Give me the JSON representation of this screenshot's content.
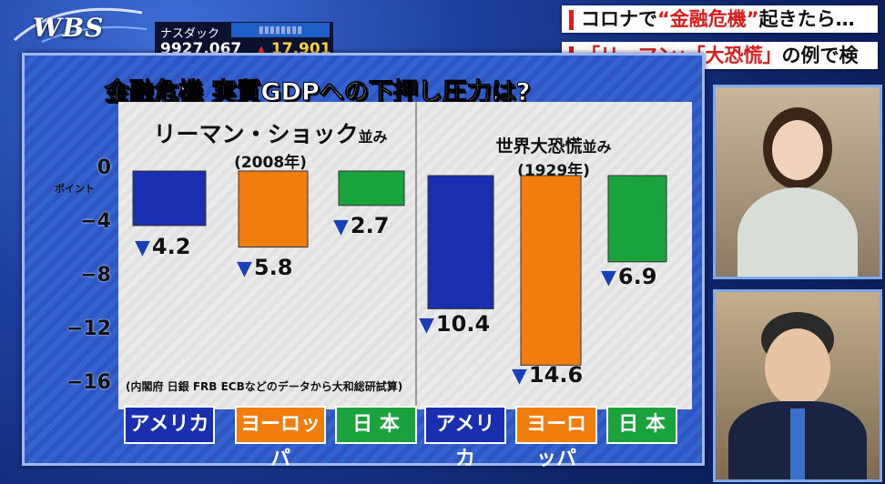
{
  "logo": "WBS",
  "ticker": {
    "name": "ナスダック",
    "value": "9927.067",
    "change": "17.901",
    "arrow": "▲"
  },
  "headline": {
    "line1_pre": "コロナで",
    "line1_red": "“金融危機”",
    "line1_post": "起きたら…",
    "line2_red": "「リーマン」「大恐慌」",
    "line2_post": "の例で検証"
  },
  "board_title": "金融危機  実質GDPへの下押し圧力は?",
  "y_unit": "ポイント",
  "note": "(内閣府 日銀 FRB ECBなどのデータから大和総研試算)",
  "panels": [
    {
      "title": "リーマン・ショック",
      "title_suffix": "並み",
      "subtitle": "(2008年)"
    },
    {
      "title": "世界大恐慌",
      "title_suffix": "並み",
      "subtitle": "(1929年)"
    }
  ],
  "categories_display": [
    "アメリカ",
    "ヨーロッパ",
    "日 本",
    "アメリカ",
    "ヨーロッパ",
    "日 本"
  ],
  "chart_data": {
    "type": "bar",
    "title": "金融危機  実質GDPへの下押し圧力は?",
    "ylabel": "ポイント",
    "ylim": [
      -16,
      0
    ],
    "yticks": [
      0,
      -4,
      -8,
      -12,
      -16
    ],
    "groups": [
      "リーマン・ショック並み (2008年)",
      "世界大恐慌並み (1929年)"
    ],
    "categories": [
      "アメリカ",
      "ヨーロッパ",
      "日本"
    ],
    "series": [
      {
        "values": [
          -4.2,
          -5.8,
          -2.7
        ]
      },
      {
        "values": [
          -10.4,
          -14.6,
          -6.9
        ]
      }
    ],
    "value_labels": [
      "4.2",
      "5.8",
      "2.7",
      "10.4",
      "14.6",
      "6.9"
    ],
    "colors": {
      "アメリカ": "#1a2fb0",
      "ヨーロッパ": "#f07d0c",
      "日本": "#1aa23c"
    },
    "grid": false
  }
}
